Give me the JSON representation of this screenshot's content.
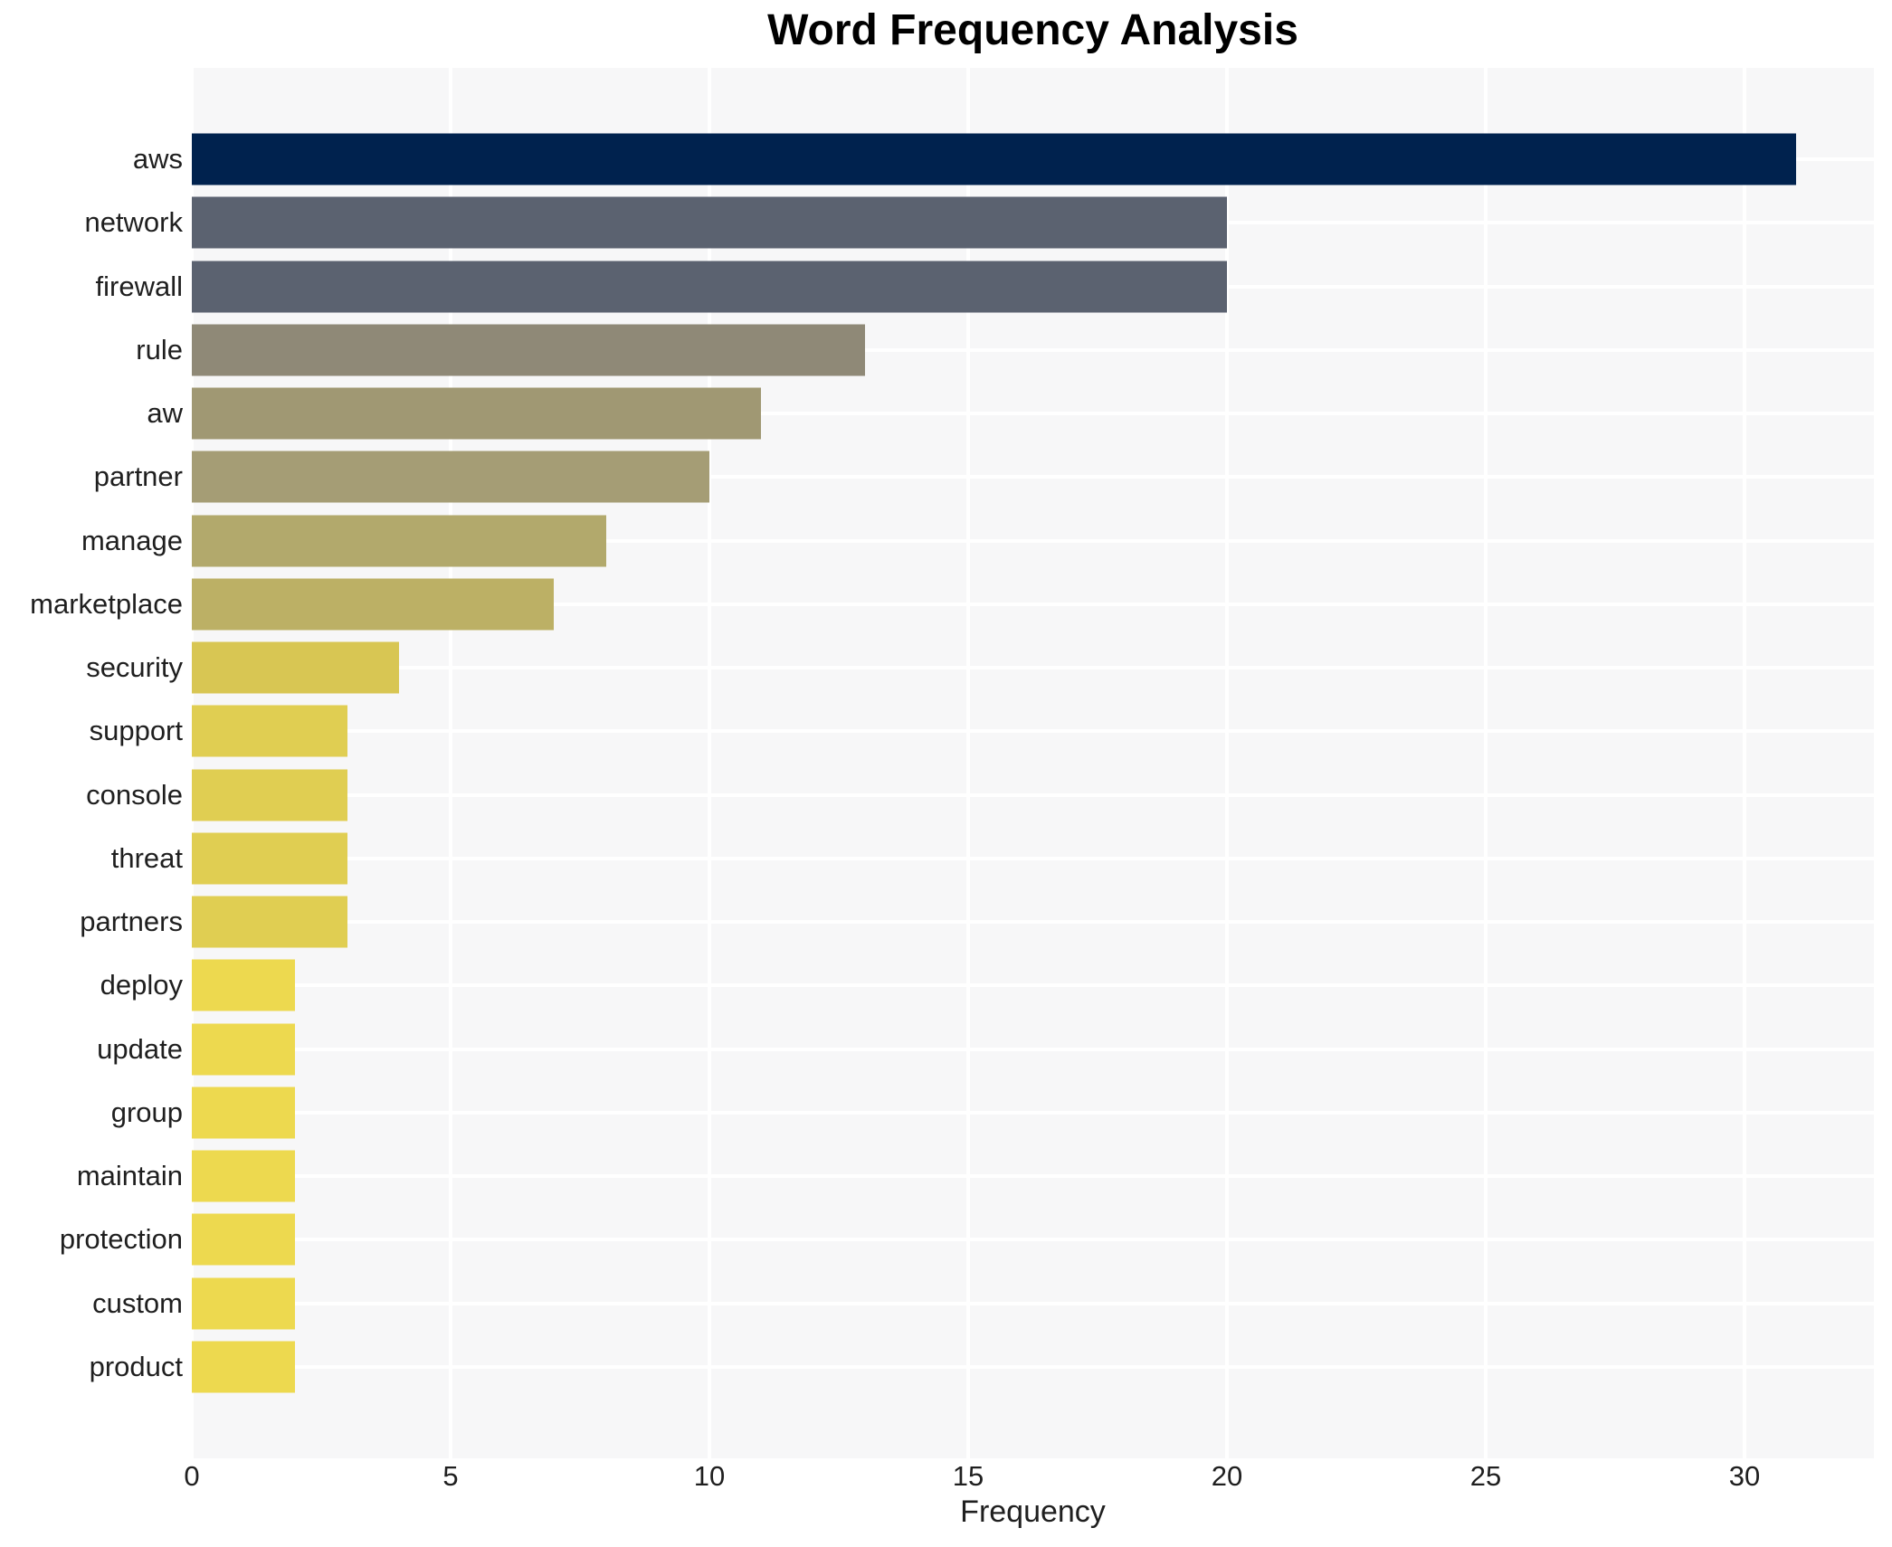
{
  "title": "Word Frequency Analysis",
  "xlabel": "Frequency",
  "chart_data": {
    "type": "bar",
    "orientation": "horizontal",
    "title": "Word Frequency Analysis",
    "xlabel": "Frequency",
    "ylabel": "",
    "categories": [
      "aws",
      "network",
      "firewall",
      "rule",
      "aw",
      "partner",
      "manage",
      "marketplace",
      "security",
      "support",
      "console",
      "threat",
      "partners",
      "deploy",
      "update",
      "group",
      "maintain",
      "protection",
      "custom",
      "product"
    ],
    "values": [
      31,
      20,
      20,
      13,
      11,
      10,
      8,
      7,
      4,
      3,
      3,
      3,
      3,
      2,
      2,
      2,
      2,
      2,
      2,
      2
    ],
    "bar_colors": [
      "#00224e",
      "#5b6270",
      "#5b6270",
      "#8f8977",
      "#a09873",
      "#a59d75",
      "#b2a96c",
      "#bcb065",
      "#d8c653",
      "#e0ce52",
      "#e0ce52",
      "#e0ce52",
      "#e0ce52",
      "#edd94f",
      "#edd94f",
      "#edd94f",
      "#edd94f",
      "#edd94f",
      "#edd94f",
      "#edd94f"
    ],
    "xticks": [
      0,
      5,
      10,
      15,
      20,
      25,
      30
    ],
    "xlim": [
      0,
      32.5
    ],
    "grid": true,
    "legend": "none",
    "plot_background": "#f7f7f8",
    "gridline_color": "#ffffff",
    "text_color": "#1f1f1f"
  }
}
